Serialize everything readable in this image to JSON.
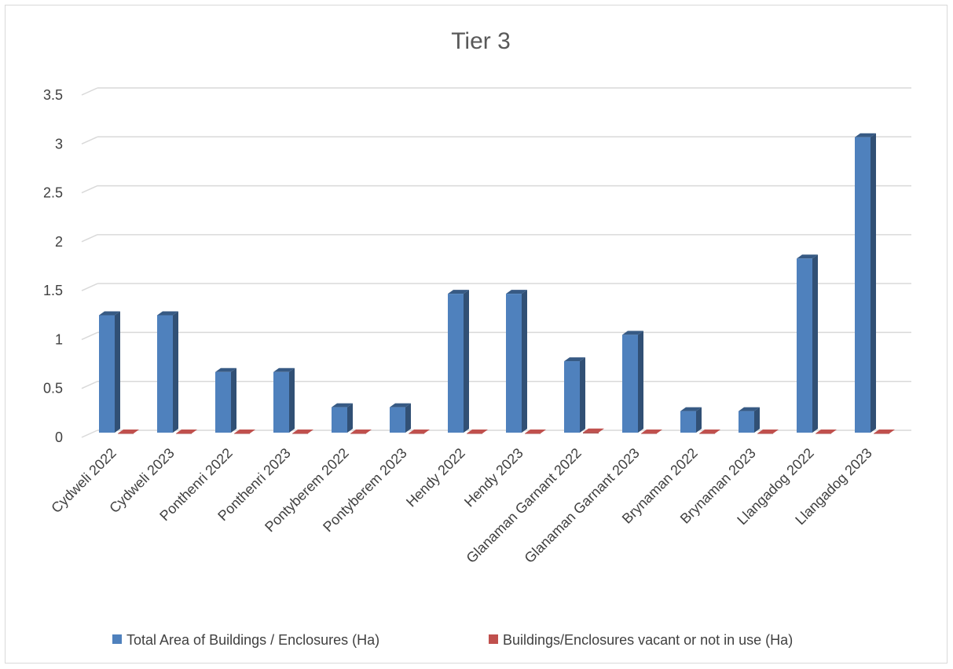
{
  "chart_data": {
    "type": "bar",
    "title": "Tier 3",
    "xlabel": "",
    "ylabel": "",
    "ylim": [
      0,
      3.5
    ],
    "yticks": [
      "0",
      "0.5",
      "1",
      "1.5",
      "2",
      "2.5",
      "3",
      "3.5"
    ],
    "grid": true,
    "legend_position": "bottom",
    "categories": [
      "Cydweli 2022",
      "Cydweli 2023",
      "Ponthenri 2022",
      "Ponthenri 2023",
      "Pontyberem 2022",
      "Pontyberem 2023",
      "Hendy 2022",
      "Hendy 2023",
      "Glanaman  Garnant 2022",
      "Glanaman  Garnant 2023",
      "Brynaman 2022",
      "Brynaman 2023",
      "Llangadog 2022",
      "Llangadog 2023"
    ],
    "series": [
      {
        "name": "Total Area of Buildings / Enclosures (Ha)",
        "color": "#4f81bd",
        "values": [
          1.2,
          1.2,
          0.62,
          0.62,
          0.26,
          0.26,
          1.42,
          1.42,
          0.73,
          1.0,
          0.22,
          0.22,
          1.78,
          3.02
        ]
      },
      {
        "name": "Buildings/Enclosures vacant or not in use (Ha)",
        "color": "#c0504d",
        "values": [
          0,
          0,
          0,
          0,
          0,
          0,
          0,
          0,
          0.01,
          0,
          0,
          0,
          0,
          0
        ]
      }
    ]
  }
}
